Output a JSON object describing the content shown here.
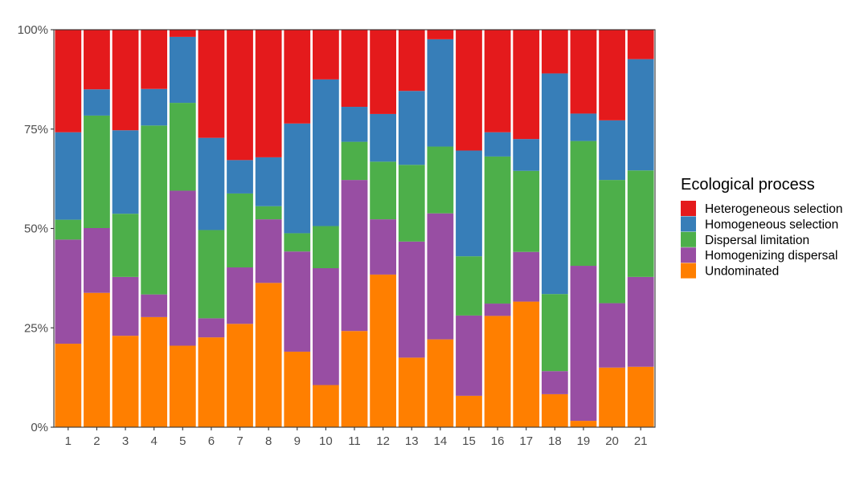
{
  "chart_data": {
    "type": "bar",
    "stacked": true,
    "normalized": true,
    "categories": [
      "1",
      "2",
      "3",
      "4",
      "5",
      "6",
      "7",
      "8",
      "9",
      "10",
      "11",
      "12",
      "13",
      "14",
      "15",
      "16",
      "17",
      "18",
      "19",
      "20",
      "21"
    ],
    "y_ticks": [
      "0%",
      "25%",
      "50%",
      "75%",
      "100%"
    ],
    "ylim": [
      0,
      100
    ],
    "grid": false,
    "legend_position": "right",
    "legend_title": "Ecological process",
    "series": [
      {
        "name": "Undominated",
        "color": "#FF7F00",
        "values": [
          21,
          33.8,
          23,
          27.7,
          20.5,
          22.6,
          26,
          36.3,
          19,
          10.6,
          24.2,
          38.4,
          17.5,
          22.1,
          7.9,
          28,
          31.6,
          8.3,
          1.6,
          15,
          15.2
        ]
      },
      {
        "name": "Homogenizing dispersal",
        "color": "#984EA3",
        "values": [
          26.2,
          16.3,
          14.8,
          5.7,
          39,
          4.8,
          14.2,
          16,
          25.2,
          29.4,
          38,
          13.9,
          29.2,
          31.7,
          20.2,
          3.1,
          12.5,
          5.8,
          39,
          16.2,
          22.6
        ]
      },
      {
        "name": "Dispersal limitation",
        "color": "#4DAF4A",
        "values": [
          5,
          28.3,
          15.9,
          42.5,
          22.1,
          22.2,
          18.6,
          3.3,
          4.6,
          10.6,
          9.6,
          14.5,
          19.3,
          16.8,
          14.9,
          37,
          20.4,
          19.4,
          31.4,
          31,
          26.8
        ]
      },
      {
        "name": "Homogeneous selection",
        "color": "#377EB8",
        "values": [
          22,
          6.6,
          21,
          9.2,
          16.6,
          23.2,
          8.4,
          12.3,
          27.6,
          36.9,
          8.8,
          12,
          18.6,
          27,
          26.6,
          6.1,
          8,
          55.5,
          6.9,
          15,
          28
        ]
      },
      {
        "name": "Heterogeneous selection",
        "color": "#E41A1C",
        "values": [
          25.8,
          15,
          25.3,
          14.9,
          1.8,
          27.2,
          32.8,
          32.1,
          23.6,
          12.5,
          19.4,
          21.2,
          15.4,
          2.4,
          30.4,
          25.8,
          27.5,
          11,
          21.1,
          22.8,
          7.4
        ]
      }
    ]
  }
}
